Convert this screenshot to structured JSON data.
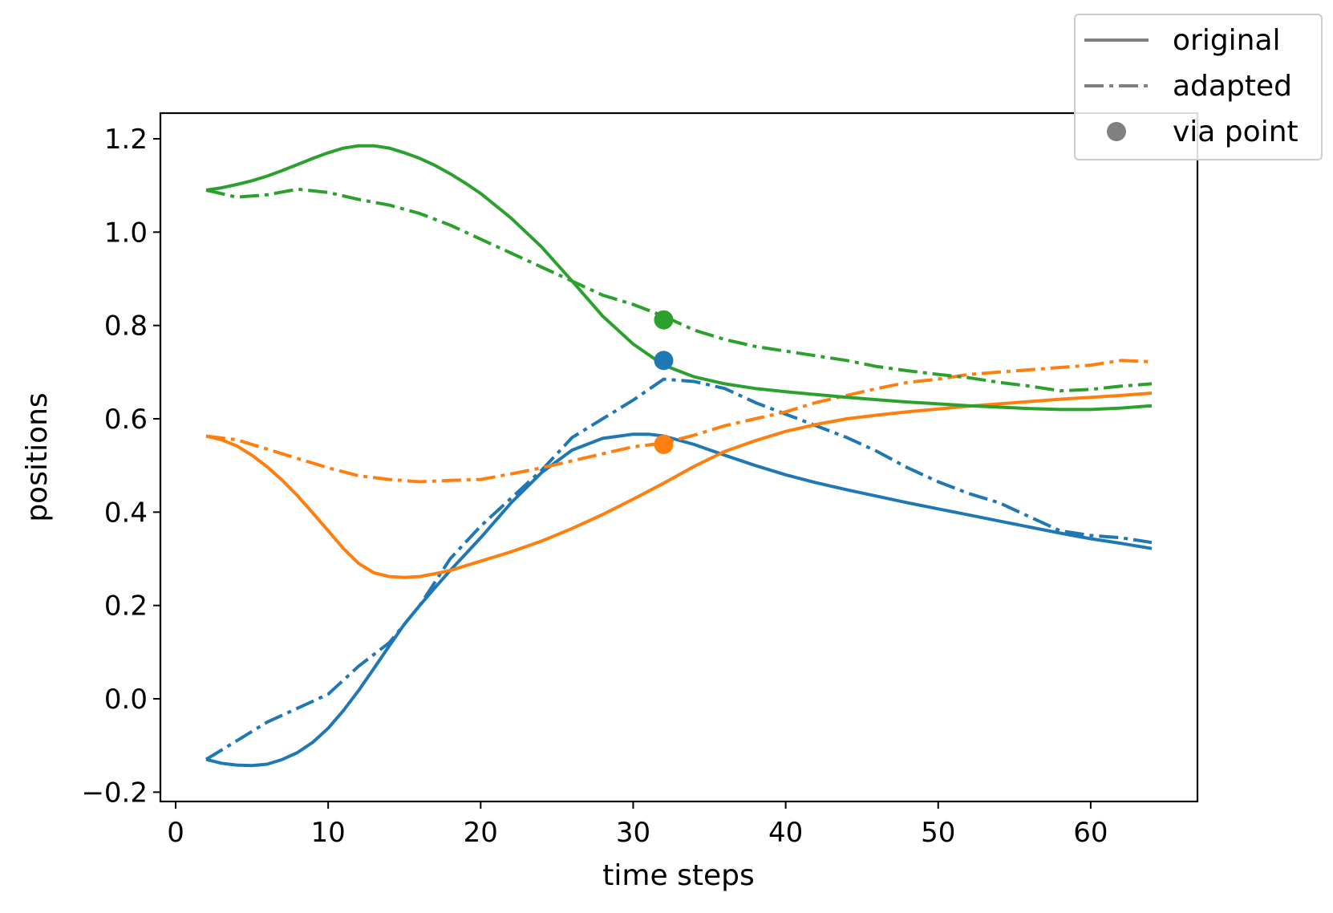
{
  "chart_data": {
    "type": "line",
    "title": "",
    "xlabel": "time steps",
    "ylabel": "positions",
    "xlim": [
      -1,
      67
    ],
    "ylim": [
      -0.22,
      1.255
    ],
    "xticks": [
      0,
      10,
      20,
      30,
      40,
      50,
      60
    ],
    "yticks": [
      -0.2,
      0.0,
      0.2,
      0.4,
      0.6,
      0.8,
      1.0,
      1.2
    ],
    "xtick_labels": [
      "0",
      "10",
      "20",
      "30",
      "40",
      "50",
      "60"
    ],
    "ytick_labels": [
      "−0.2",
      "0.0",
      "0.2",
      "0.4",
      "0.6",
      "0.8",
      "1.0",
      "1.2"
    ],
    "grid": false,
    "legend": {
      "position": "top-right",
      "entries": [
        {
          "label": "original",
          "style": "solid"
        },
        {
          "label": "adapted",
          "style": "dashdot"
        },
        {
          "label": "via point",
          "style": "marker"
        }
      ]
    },
    "colors": {
      "blue": "#1f77b4",
      "orange": "#ff7f0e",
      "green": "#2ca02c",
      "legend_gray": "#808080"
    },
    "series": [
      {
        "name": "blue original",
        "color": "blue",
        "style": "solid",
        "x": [
          2,
          3,
          4,
          5,
          6,
          7,
          8,
          9,
          10,
          11,
          12,
          13,
          14,
          15,
          16,
          17,
          18,
          19,
          20,
          22,
          24,
          26,
          28,
          30,
          31,
          32,
          34,
          36,
          38,
          40,
          42,
          44,
          46,
          48,
          50,
          52,
          54,
          56,
          58,
          60,
          62,
          64
        ],
        "y": [
          -0.13,
          -0.138,
          -0.142,
          -0.143,
          -0.14,
          -0.13,
          -0.115,
          -0.093,
          -0.063,
          -0.025,
          0.018,
          0.065,
          0.113,
          0.16,
          0.2,
          0.238,
          0.275,
          0.31,
          0.345,
          0.42,
          0.485,
          0.533,
          0.558,
          0.567,
          0.567,
          0.563,
          0.545,
          0.522,
          0.5,
          0.48,
          0.463,
          0.448,
          0.434,
          0.42,
          0.407,
          0.394,
          0.381,
          0.368,
          0.355,
          0.343,
          0.333,
          0.322
        ]
      },
      {
        "name": "blue adapted",
        "color": "blue",
        "style": "dashdot",
        "x": [
          2,
          4,
          6,
          8,
          10,
          12,
          14,
          16,
          18,
          20,
          22,
          24,
          26,
          28,
          30,
          32,
          34,
          36,
          38,
          40,
          42,
          44,
          46,
          48,
          50,
          52,
          54,
          56,
          58,
          60,
          62,
          64
        ],
        "y": [
          -0.13,
          -0.09,
          -0.05,
          -0.02,
          0.01,
          0.07,
          0.12,
          0.2,
          0.3,
          0.37,
          0.43,
          0.49,
          0.56,
          0.6,
          0.64,
          0.685,
          0.68,
          0.665,
          0.635,
          0.61,
          0.585,
          0.56,
          0.53,
          0.495,
          0.465,
          0.44,
          0.42,
          0.39,
          0.36,
          0.35,
          0.345,
          0.335
        ]
      },
      {
        "name": "orange original",
        "color": "orange",
        "style": "solid",
        "x": [
          2,
          3,
          4,
          5,
          6,
          7,
          8,
          9,
          10,
          11,
          12,
          13,
          14,
          15,
          16,
          17,
          18,
          19,
          20,
          22,
          24,
          26,
          28,
          30,
          32,
          34,
          36,
          38,
          40,
          42,
          44,
          46,
          48,
          50,
          52,
          54,
          56,
          58,
          60,
          62,
          64
        ],
        "y": [
          0.563,
          0.555,
          0.542,
          0.522,
          0.497,
          0.468,
          0.435,
          0.398,
          0.36,
          0.322,
          0.29,
          0.27,
          0.262,
          0.26,
          0.262,
          0.268,
          0.275,
          0.285,
          0.295,
          0.315,
          0.338,
          0.365,
          0.395,
          0.428,
          0.462,
          0.498,
          0.53,
          0.553,
          0.573,
          0.588,
          0.6,
          0.608,
          0.615,
          0.621,
          0.627,
          0.632,
          0.637,
          0.642,
          0.646,
          0.65,
          0.655
        ]
      },
      {
        "name": "orange adapted",
        "color": "orange",
        "style": "dashdot",
        "x": [
          2,
          4,
          6,
          8,
          10,
          12,
          14,
          16,
          18,
          20,
          22,
          24,
          26,
          28,
          30,
          32,
          34,
          36,
          38,
          40,
          42,
          44,
          46,
          48,
          50,
          52,
          54,
          56,
          58,
          60,
          62,
          64
        ],
        "y": [
          0.563,
          0.555,
          0.535,
          0.515,
          0.495,
          0.478,
          0.47,
          0.465,
          0.468,
          0.47,
          0.482,
          0.495,
          0.51,
          0.525,
          0.54,
          0.548,
          0.565,
          0.585,
          0.6,
          0.615,
          0.635,
          0.65,
          0.665,
          0.678,
          0.685,
          0.695,
          0.7,
          0.705,
          0.71,
          0.715,
          0.725,
          0.722
        ]
      },
      {
        "name": "green original",
        "color": "green",
        "style": "solid",
        "x": [
          2,
          3,
          4,
          5,
          6,
          7,
          8,
          9,
          10,
          11,
          12,
          13,
          14,
          15,
          16,
          17,
          18,
          19,
          20,
          22,
          24,
          26,
          28,
          30,
          32,
          34,
          36,
          38,
          40,
          42,
          44,
          46,
          48,
          50,
          52,
          54,
          56,
          58,
          60,
          62,
          64
        ],
        "y": [
          1.09,
          1.095,
          1.102,
          1.11,
          1.12,
          1.132,
          1.145,
          1.158,
          1.17,
          1.18,
          1.185,
          1.185,
          1.18,
          1.17,
          1.158,
          1.143,
          1.125,
          1.105,
          1.083,
          1.03,
          0.968,
          0.895,
          0.82,
          0.76,
          0.715,
          0.69,
          0.675,
          0.665,
          0.658,
          0.652,
          0.646,
          0.641,
          0.636,
          0.632,
          0.628,
          0.625,
          0.622,
          0.62,
          0.62,
          0.623,
          0.628
        ]
      },
      {
        "name": "green adapted",
        "color": "green",
        "style": "dashdot",
        "x": [
          2,
          4,
          6,
          8,
          10,
          12,
          14,
          16,
          18,
          20,
          22,
          24,
          26,
          28,
          30,
          32,
          34,
          36,
          38,
          40,
          42,
          44,
          46,
          48,
          50,
          52,
          54,
          56,
          58,
          60,
          62,
          64
        ],
        "y": [
          1.09,
          1.075,
          1.08,
          1.092,
          1.085,
          1.07,
          1.058,
          1.04,
          1.015,
          0.985,
          0.955,
          0.925,
          0.895,
          0.865,
          0.845,
          0.82,
          0.79,
          0.77,
          0.755,
          0.745,
          0.735,
          0.725,
          0.712,
          0.703,
          0.695,
          0.688,
          0.678,
          0.67,
          0.66,
          0.663,
          0.67,
          0.675
        ]
      }
    ],
    "via_points": [
      {
        "name": "blue via point",
        "color": "blue",
        "x": 32,
        "y": 0.725
      },
      {
        "name": "orange via point",
        "color": "orange",
        "x": 32,
        "y": 0.545
      },
      {
        "name": "green via point",
        "color": "green",
        "x": 32,
        "y": 0.812
      }
    ]
  }
}
